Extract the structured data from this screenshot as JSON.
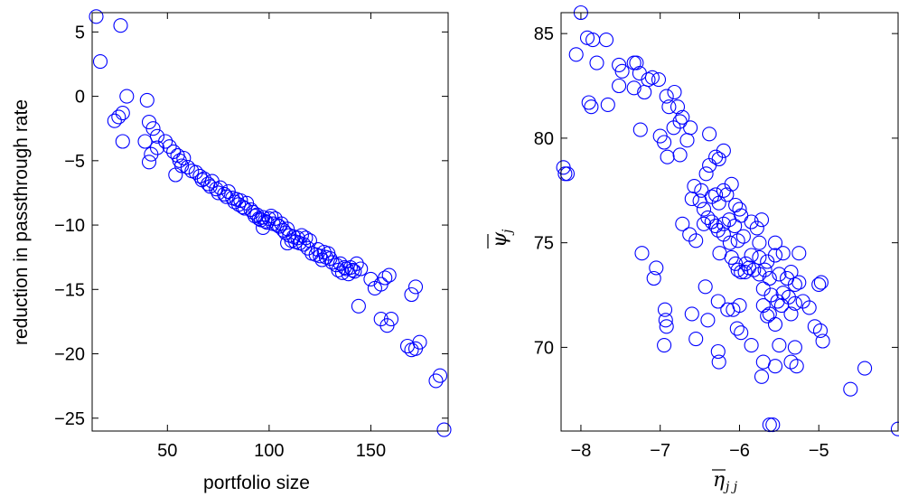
{
  "chart_data": [
    {
      "type": "scatter",
      "title": "",
      "xlabel": "portfolio size",
      "ylabel": "reduction in passthrough rate",
      "xlim": [
        13,
        188
      ],
      "ylim": [
        -26,
        6.5
      ],
      "xticks": [
        50,
        100,
        150
      ],
      "yticks": [
        5,
        0,
        -5,
        -10,
        -15,
        -20,
        -25
      ],
      "xtick_labels": [
        "50",
        "100",
        "150"
      ],
      "ytick_labels": [
        "5",
        "0",
        "−5",
        "−10",
        "−15",
        "−20",
        "−25"
      ],
      "marker": "open circle",
      "color": "#0000ff",
      "grid": false,
      "points": [
        {
          "x": 15,
          "y": 6.2
        },
        {
          "x": 17,
          "y": 2.7
        },
        {
          "x": 27,
          "y": 5.5
        },
        {
          "x": 30,
          "y": 0.0
        },
        {
          "x": 28,
          "y": -1.3
        },
        {
          "x": 26,
          "y": -1.6
        },
        {
          "x": 24,
          "y": -1.9
        },
        {
          "x": 28,
          "y": -3.5
        },
        {
          "x": 40,
          "y": -0.3
        },
        {
          "x": 41,
          "y": -2.0
        },
        {
          "x": 43,
          "y": -2.5
        },
        {
          "x": 45,
          "y": -3.1
        },
        {
          "x": 39,
          "y": -3.5
        },
        {
          "x": 42,
          "y": -4.5
        },
        {
          "x": 41,
          "y": -5.1
        },
        {
          "x": 45,
          "y": -4.0
        },
        {
          "x": 49,
          "y": -3.5
        },
        {
          "x": 51,
          "y": -3.9
        },
        {
          "x": 53,
          "y": -4.3
        },
        {
          "x": 55,
          "y": -4.6
        },
        {
          "x": 56,
          "y": -5.0
        },
        {
          "x": 57,
          "y": -5.4
        },
        {
          "x": 54,
          "y": -6.1
        },
        {
          "x": 58,
          "y": -4.8
        },
        {
          "x": 60,
          "y": -5.5
        },
        {
          "x": 62,
          "y": -5.8
        },
        {
          "x": 64,
          "y": -5.9
        },
        {
          "x": 66,
          "y": -6.2
        },
        {
          "x": 67,
          "y": -6.5
        },
        {
          "x": 68,
          "y": -6.4
        },
        {
          "x": 70,
          "y": -6.8
        },
        {
          "x": 71,
          "y": -7.0
        },
        {
          "x": 72,
          "y": -6.6
        },
        {
          "x": 74,
          "y": -7.2
        },
        {
          "x": 75,
          "y": -7.5
        },
        {
          "x": 76,
          "y": -7.1
        },
        {
          "x": 78,
          "y": -7.6
        },
        {
          "x": 79,
          "y": -7.8
        },
        {
          "x": 80,
          "y": -7.4
        },
        {
          "x": 82,
          "y": -7.9
        },
        {
          "x": 83,
          "y": -8.2
        },
        {
          "x": 84,
          "y": -8.0
        },
        {
          "x": 85,
          "y": -8.4
        },
        {
          "x": 86,
          "y": -8.1
        },
        {
          "x": 87,
          "y": -8.6
        },
        {
          "x": 88,
          "y": -8.7
        },
        {
          "x": 89,
          "y": -8.3
        },
        {
          "x": 91,
          "y": -8.8
        },
        {
          "x": 92,
          "y": -9.0
        },
        {
          "x": 93,
          "y": -9.3
        },
        {
          "x": 94,
          "y": -9.2
        },
        {
          "x": 95,
          "y": -9.5
        },
        {
          "x": 96,
          "y": -9.6
        },
        {
          "x": 97,
          "y": -9.4
        },
        {
          "x": 97,
          "y": -10.2
        },
        {
          "x": 98,
          "y": -9.7
        },
        {
          "x": 99,
          "y": -9.8
        },
        {
          "x": 100,
          "y": -9.5
        },
        {
          "x": 101,
          "y": -9.3
        },
        {
          "x": 102,
          "y": -9.9
        },
        {
          "x": 103,
          "y": -9.5
        },
        {
          "x": 104,
          "y": -10.0
        },
        {
          "x": 105,
          "y": -10.1
        },
        {
          "x": 106,
          "y": -9.9
        },
        {
          "x": 107,
          "y": -10.4
        },
        {
          "x": 108,
          "y": -10.6
        },
        {
          "x": 109,
          "y": -10.3
        },
        {
          "x": 110,
          "y": -10.8
        },
        {
          "x": 109,
          "y": -11.4
        },
        {
          "x": 111,
          "y": -11.2
        },
        {
          "x": 112,
          "y": -10.9
        },
        {
          "x": 113,
          "y": -11.3
        },
        {
          "x": 114,
          "y": -11.0
        },
        {
          "x": 115,
          "y": -11.4
        },
        {
          "x": 116,
          "y": -10.8
        },
        {
          "x": 117,
          "y": -11.5
        },
        {
          "x": 118,
          "y": -11.0
        },
        {
          "x": 119,
          "y": -11.8
        },
        {
          "x": 120,
          "y": -11.2
        },
        {
          "x": 121,
          "y": -12.2
        },
        {
          "x": 123,
          "y": -12.3
        },
        {
          "x": 124,
          "y": -11.9
        },
        {
          "x": 125,
          "y": -12.4
        },
        {
          "x": 126,
          "y": -12.7
        },
        {
          "x": 127,
          "y": -12.1
        },
        {
          "x": 128,
          "y": -12.5
        },
        {
          "x": 129,
          "y": -12.2
        },
        {
          "x": 130,
          "y": -12.6
        },
        {
          "x": 131,
          "y": -12.9
        },
        {
          "x": 133,
          "y": -13.1
        },
        {
          "x": 134,
          "y": -13.5
        },
        {
          "x": 135,
          "y": -13.0
        },
        {
          "x": 136,
          "y": -13.7
        },
        {
          "x": 137,
          "y": -13.3
        },
        {
          "x": 138,
          "y": -13.4
        },
        {
          "x": 139,
          "y": -13.8
        },
        {
          "x": 140,
          "y": -13.3
        },
        {
          "x": 141,
          "y": -13.5
        },
        {
          "x": 142,
          "y": -13.6
        },
        {
          "x": 143,
          "y": -13.0
        },
        {
          "x": 144,
          "y": -16.3
        },
        {
          "x": 145,
          "y": -13.4
        },
        {
          "x": 150,
          "y": -14.2
        },
        {
          "x": 152,
          "y": -14.9
        },
        {
          "x": 155,
          "y": -14.6
        },
        {
          "x": 157,
          "y": -14.1
        },
        {
          "x": 159,
          "y": -13.9
        },
        {
          "x": 155,
          "y": -17.3
        },
        {
          "x": 158,
          "y": -17.8
        },
        {
          "x": 160,
          "y": -17.3
        },
        {
          "x": 168,
          "y": -19.4
        },
        {
          "x": 170,
          "y": -19.7
        },
        {
          "x": 172,
          "y": -19.6
        },
        {
          "x": 174,
          "y": -19.1
        },
        {
          "x": 170,
          "y": -15.4
        },
        {
          "x": 172,
          "y": -14.8
        },
        {
          "x": 182,
          "y": -22.1
        },
        {
          "x": 184,
          "y": -21.7
        },
        {
          "x": 186,
          "y": -25.9
        }
      ]
    },
    {
      "type": "scatter",
      "title": "",
      "xlabel": "η̄ j j",
      "ylabel": "ψ̄ j",
      "xlim": [
        -8.25,
        -4.0
      ],
      "ylim": [
        66,
        86
      ],
      "xticks": [
        -8,
        -7,
        -6,
        -5
      ],
      "yticks": [
        85,
        80,
        75,
        70
      ],
      "xtick_labels": [
        "−8",
        "−7",
        "−6",
        "−5"
      ],
      "ytick_labels": [
        "85",
        "80",
        "75",
        "70"
      ],
      "marker": "open circle",
      "color": "#0000ff",
      "grid": false,
      "points": [
        {
          "x": -8.0,
          "y": 86.0
        },
        {
          "x": -7.92,
          "y": 84.8
        },
        {
          "x": -7.85,
          "y": 84.7
        },
        {
          "x": -7.68,
          "y": 84.7
        },
        {
          "x": -8.06,
          "y": 84.0
        },
        {
          "x": -7.8,
          "y": 83.6
        },
        {
          "x": -7.52,
          "y": 83.5
        },
        {
          "x": -7.48,
          "y": 83.2
        },
        {
          "x": -7.33,
          "y": 83.6
        },
        {
          "x": -7.3,
          "y": 83.6
        },
        {
          "x": -7.26,
          "y": 83.1
        },
        {
          "x": -7.15,
          "y": 82.8
        },
        {
          "x": -7.1,
          "y": 82.9
        },
        {
          "x": -7.02,
          "y": 82.8
        },
        {
          "x": -7.33,
          "y": 82.4
        },
        {
          "x": -7.2,
          "y": 82.2
        },
        {
          "x": -7.52,
          "y": 82.5
        },
        {
          "x": -6.92,
          "y": 82.0
        },
        {
          "x": -6.82,
          "y": 82.2
        },
        {
          "x": -6.89,
          "y": 81.5
        },
        {
          "x": -6.78,
          "y": 81.5
        },
        {
          "x": -7.9,
          "y": 81.7
        },
        {
          "x": -7.87,
          "y": 81.5
        },
        {
          "x": -7.66,
          "y": 81.6
        },
        {
          "x": -6.72,
          "y": 81.0
        },
        {
          "x": -6.75,
          "y": 80.8
        },
        {
          "x": -6.83,
          "y": 80.5
        },
        {
          "x": -6.62,
          "y": 80.5
        },
        {
          "x": -7.25,
          "y": 80.4
        },
        {
          "x": -7.0,
          "y": 80.1
        },
        {
          "x": -6.95,
          "y": 79.8
        },
        {
          "x": -6.66,
          "y": 79.9
        },
        {
          "x": -6.38,
          "y": 80.2
        },
        {
          "x": -6.91,
          "y": 79.1
        },
        {
          "x": -6.75,
          "y": 79.2
        },
        {
          "x": -6.3,
          "y": 79.1
        },
        {
          "x": -6.26,
          "y": 79.0
        },
        {
          "x": -6.2,
          "y": 79.4
        },
        {
          "x": -6.38,
          "y": 78.7
        },
        {
          "x": -6.42,
          "y": 78.3
        },
        {
          "x": -8.22,
          "y": 78.6
        },
        {
          "x": -8.2,
          "y": 78.3
        },
        {
          "x": -8.17,
          "y": 78.3
        },
        {
          "x": -6.1,
          "y": 77.8
        },
        {
          "x": -6.2,
          "y": 77.5
        },
        {
          "x": -6.3,
          "y": 77.3
        },
        {
          "x": -6.57,
          "y": 77.7
        },
        {
          "x": -6.48,
          "y": 77.5
        },
        {
          "x": -6.5,
          "y": 77.0
        },
        {
          "x": -6.6,
          "y": 77.1
        },
        {
          "x": -6.35,
          "y": 77.2
        },
        {
          "x": -6.16,
          "y": 77.3
        },
        {
          "x": -6.26,
          "y": 76.9
        },
        {
          "x": -6.05,
          "y": 76.8
        },
        {
          "x": -6.0,
          "y": 76.6
        },
        {
          "x": -6.45,
          "y": 76.6
        },
        {
          "x": -6.4,
          "y": 76.2
        },
        {
          "x": -6.35,
          "y": 76.0
        },
        {
          "x": -6.45,
          "y": 75.9
        },
        {
          "x": -6.3,
          "y": 75.8
        },
        {
          "x": -6.2,
          "y": 75.9
        },
        {
          "x": -6.13,
          "y": 76.1
        },
        {
          "x": -6.06,
          "y": 75.8
        },
        {
          "x": -5.98,
          "y": 76.3
        },
        {
          "x": -5.85,
          "y": 76.0
        },
        {
          "x": -5.78,
          "y": 75.7
        },
        {
          "x": -5.72,
          "y": 76.1
        },
        {
          "x": -6.72,
          "y": 75.9
        },
        {
          "x": -6.63,
          "y": 75.4
        },
        {
          "x": -6.55,
          "y": 75.1
        },
        {
          "x": -6.27,
          "y": 75.6
        },
        {
          "x": -6.2,
          "y": 75.4
        },
        {
          "x": -6.12,
          "y": 75.0
        },
        {
          "x": -6.02,
          "y": 75.1
        },
        {
          "x": -5.95,
          "y": 75.3
        },
        {
          "x": -5.75,
          "y": 75.0
        },
        {
          "x": -5.55,
          "y": 75.0
        },
        {
          "x": -6.25,
          "y": 74.5
        },
        {
          "x": -6.1,
          "y": 74.3
        },
        {
          "x": -6.05,
          "y": 74.0
        },
        {
          "x": -5.92,
          "y": 74.0
        },
        {
          "x": -5.85,
          "y": 74.4
        },
        {
          "x": -5.75,
          "y": 74.3
        },
        {
          "x": -5.65,
          "y": 74.1
        },
        {
          "x": -5.55,
          "y": 74.4
        },
        {
          "x": -5.45,
          "y": 74.5
        },
        {
          "x": -5.25,
          "y": 74.5
        },
        {
          "x": -6.02,
          "y": 73.7
        },
        {
          "x": -5.98,
          "y": 73.6
        },
        {
          "x": -5.93,
          "y": 73.6
        },
        {
          "x": -5.88,
          "y": 73.8
        },
        {
          "x": -5.82,
          "y": 73.7
        },
        {
          "x": -5.75,
          "y": 73.5
        },
        {
          "x": -5.68,
          "y": 73.7
        },
        {
          "x": -5.62,
          "y": 73.3
        },
        {
          "x": -5.5,
          "y": 73.5
        },
        {
          "x": -5.4,
          "y": 73.3
        },
        {
          "x": -5.35,
          "y": 73.6
        },
        {
          "x": -5.3,
          "y": 73.0
        },
        {
          "x": -5.25,
          "y": 73.1
        },
        {
          "x": -7.23,
          "y": 74.5
        },
        {
          "x": -7.05,
          "y": 73.8
        },
        {
          "x": -7.08,
          "y": 73.3
        },
        {
          "x": -6.43,
          "y": 72.9
        },
        {
          "x": -5.7,
          "y": 72.8
        },
        {
          "x": -5.6,
          "y": 72.5
        },
        {
          "x": -5.52,
          "y": 72.2
        },
        {
          "x": -5.45,
          "y": 72.6
        },
        {
          "x": -5.38,
          "y": 72.4
        },
        {
          "x": -5.3,
          "y": 72.1
        },
        {
          "x": -5.2,
          "y": 72.2
        },
        {
          "x": -6.27,
          "y": 72.2
        },
        {
          "x": -6.15,
          "y": 71.8
        },
        {
          "x": -6.08,
          "y": 71.8
        },
        {
          "x": -6.0,
          "y": 72.0
        },
        {
          "x": -5.7,
          "y": 72.0
        },
        {
          "x": -5.62,
          "y": 71.6
        },
        {
          "x": -5.47,
          "y": 72.0
        },
        {
          "x": -5.35,
          "y": 71.6
        },
        {
          "x": -5.12,
          "y": 71.9
        },
        {
          "x": -5.0,
          "y": 73.0
        },
        {
          "x": -4.97,
          "y": 73.1
        },
        {
          "x": -6.94,
          "y": 71.8
        },
        {
          "x": -6.93,
          "y": 71.3
        },
        {
          "x": -6.92,
          "y": 71.0
        },
        {
          "x": -6.6,
          "y": 71.6
        },
        {
          "x": -6.4,
          "y": 71.3
        },
        {
          "x": -6.95,
          "y": 70.1
        },
        {
          "x": -6.55,
          "y": 70.4
        },
        {
          "x": -6.03,
          "y": 70.9
        },
        {
          "x": -5.98,
          "y": 70.7
        },
        {
          "x": -5.65,
          "y": 71.5
        },
        {
          "x": -5.55,
          "y": 71.1
        },
        {
          "x": -5.85,
          "y": 70.1
        },
        {
          "x": -5.5,
          "y": 70.1
        },
        {
          "x": -5.3,
          "y": 70.0
        },
        {
          "x": -5.05,
          "y": 71.0
        },
        {
          "x": -4.98,
          "y": 70.8
        },
        {
          "x": -4.95,
          "y": 70.3
        },
        {
          "x": -6.27,
          "y": 69.8
        },
        {
          "x": -6.26,
          "y": 69.3
        },
        {
          "x": -5.7,
          "y": 69.3
        },
        {
          "x": -5.55,
          "y": 69.1
        },
        {
          "x": -5.35,
          "y": 69.3
        },
        {
          "x": -5.28,
          "y": 69.1
        },
        {
          "x": -5.72,
          "y": 68.6
        },
        {
          "x": -4.6,
          "y": 68.0
        },
        {
          "x": -4.42,
          "y": 69.0
        },
        {
          "x": -5.62,
          "y": 66.3
        },
        {
          "x": -5.58,
          "y": 66.3
        },
        {
          "x": -4.0,
          "y": 66.1
        }
      ]
    }
  ]
}
